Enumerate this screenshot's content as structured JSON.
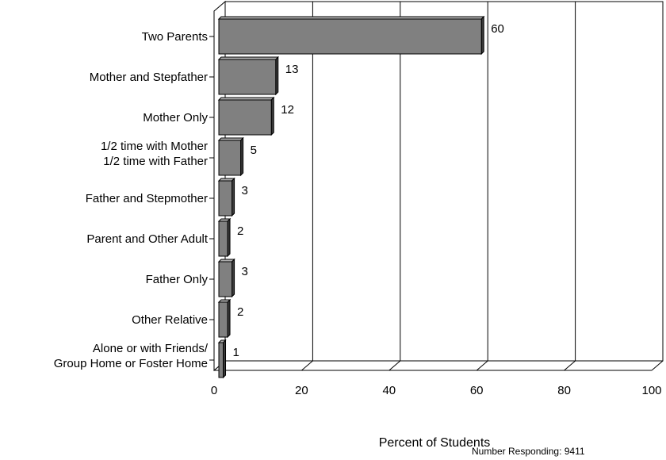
{
  "chart_data": {
    "type": "bar",
    "orientation": "horizontal",
    "categories": [
      [
        "Two Parents"
      ],
      [
        "Mother and Stepfather"
      ],
      [
        "Mother Only"
      ],
      [
        "1/2 time with Mother",
        "1/2 time with Father"
      ],
      [
        "Father and Stepmother"
      ],
      [
        "Parent and Other Adult"
      ],
      [
        "Father Only"
      ],
      [
        "Other Relative"
      ],
      [
        "Alone or with Friends/",
        "Group Home or Foster Home"
      ]
    ],
    "values": [
      60,
      13,
      12,
      5,
      3,
      2,
      3,
      2,
      1
    ],
    "data_labels": [
      "60",
      "13",
      "12",
      "5",
      "3",
      "2",
      "3",
      "2",
      "1"
    ],
    "xlabel": "Percent of Students",
    "xlim": [
      0,
      100
    ],
    "xticks": [
      0,
      20,
      40,
      60,
      80,
      100
    ],
    "xtick_labels": [
      "0",
      "20",
      "40",
      "60",
      "80",
      "100"
    ],
    "grid": true,
    "style": "3d",
    "bar_color": "#808080"
  },
  "footnote": "Number Responding: 9411"
}
